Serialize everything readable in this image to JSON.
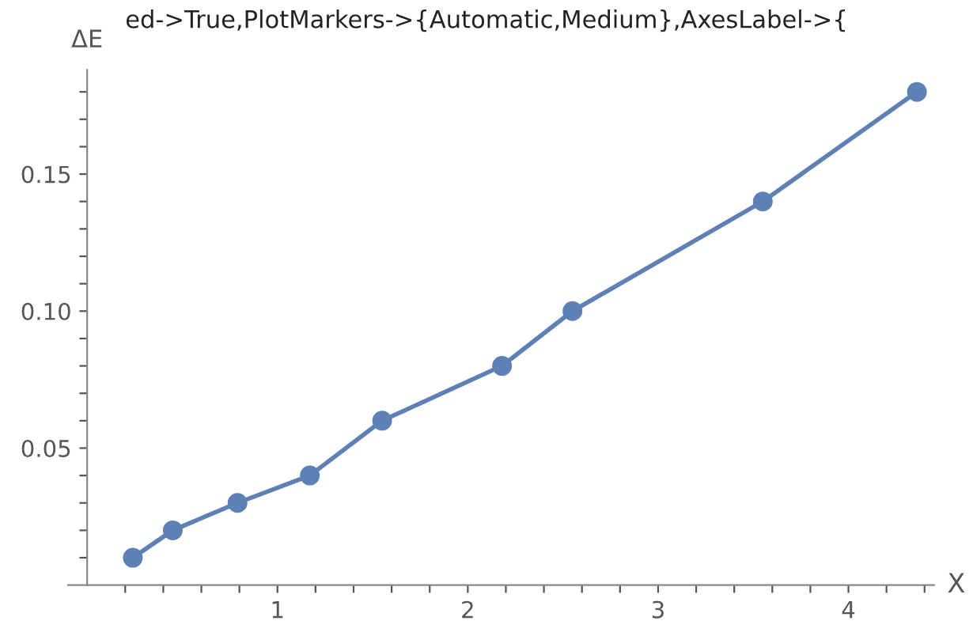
{
  "chart_data": {
    "type": "line",
    "xlabel": "X",
    "ylabel": "ΔE",
    "annotations": [
      "ed->True,PlotMarkers->{Automatic,Medium},AxesLabel->{"
    ],
    "x": [
      0.24,
      0.45,
      0.79,
      1.17,
      1.55,
      2.18,
      2.55,
      3.55,
      4.36
    ],
    "series": [
      {
        "color": "#5e81b5",
        "values": [
          0.01,
          0.02,
          0.03,
          0.04,
          0.06,
          0.08,
          0.1,
          0.14,
          0.18
        ]
      }
    ],
    "xlim": [
      -0.1,
      4.45
    ],
    "ylim": [
      0,
      0.188
    ],
    "xticks": [
      {
        "value": 0.2,
        "label": null
      },
      {
        "value": 0.4,
        "label": null
      },
      {
        "value": 0.6,
        "label": null
      },
      {
        "value": 0.8,
        "label": null
      },
      1,
      {
        "value": 1.2,
        "label": null
      },
      {
        "value": 1.4,
        "label": null
      },
      {
        "value": 1.6,
        "label": null
      },
      {
        "value": 1.8,
        "label": null
      },
      2,
      {
        "value": 2.2,
        "label": null
      },
      {
        "value": 2.4,
        "label": null
      },
      {
        "value": 2.6,
        "label": null
      },
      {
        "value": 2.8,
        "label": null
      },
      3,
      {
        "value": 3.2,
        "label": null
      },
      {
        "value": 3.4,
        "label": null
      },
      {
        "value": 3.6,
        "label": null
      },
      {
        "value": 3.8,
        "label": null
      },
      4,
      {
        "value": 4.2,
        "label": null
      },
      {
        "value": 4.4,
        "label": null
      }
    ],
    "yticks": [
      {
        "value": 0.01,
        "label": null
      },
      {
        "value": 0.02,
        "label": null
      },
      {
        "value": 0.03,
        "label": null
      },
      {
        "value": 0.04,
        "label": null
      },
      {
        "value": 0.05,
        "label": "0.05"
      },
      {
        "value": 0.06,
        "label": null
      },
      {
        "value": 0.07,
        "label": null
      },
      {
        "value": 0.08,
        "label": null
      },
      {
        "value": 0.09,
        "label": null
      },
      {
        "value": 0.1,
        "label": "0.10"
      },
      {
        "value": 0.11,
        "label": null
      },
      {
        "value": 0.12,
        "label": null
      },
      {
        "value": 0.13,
        "label": null
      },
      {
        "value": 0.14,
        "label": null
      },
      {
        "value": 0.15,
        "label": "0.15"
      },
      {
        "value": 0.16,
        "label": null
      },
      {
        "value": 0.17,
        "label": null
      },
      {
        "value": 0.18,
        "label": null
      }
    ],
    "marker": "circle",
    "line_style": "solid",
    "grid": false,
    "legend": false
  }
}
